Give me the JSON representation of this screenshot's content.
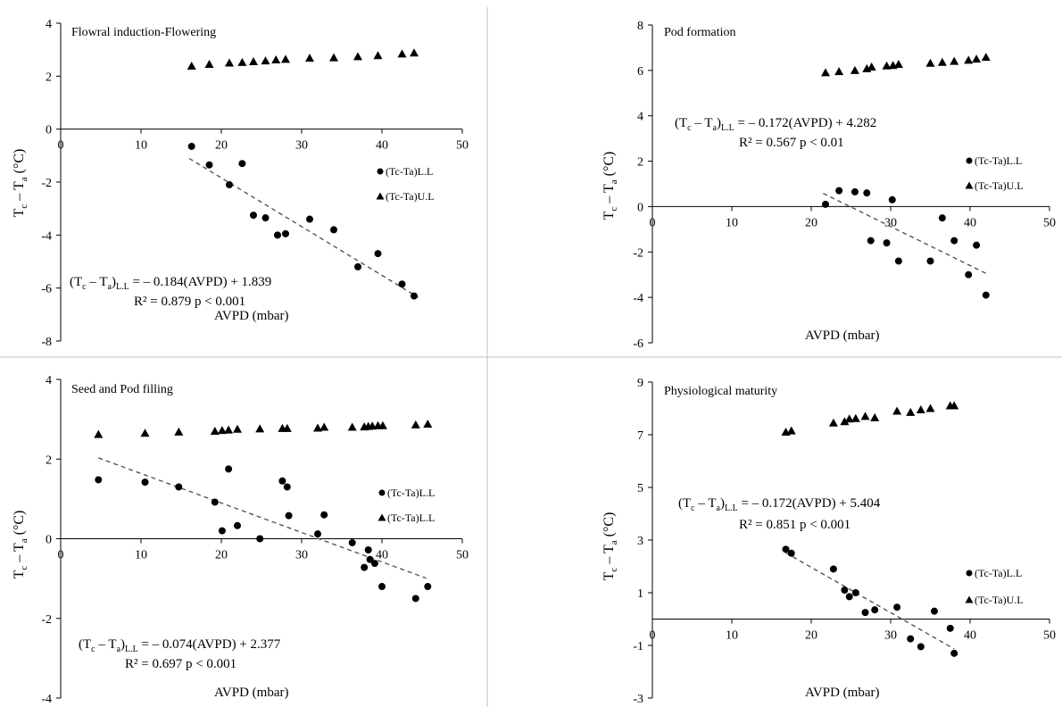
{
  "figure": {
    "divider_color": "#bfbfbf"
  },
  "chart_data": [
    {
      "type": "scatter",
      "title": "Flowral induction-Flowering",
      "xlabel": "AVPD  (mbar)",
      "ylabel": "T",
      "ylabel_sub": "c",
      "ylabel_mid": " – T",
      "ylabel_sub2": "a",
      "ylabel_unit": " (°C)",
      "xlim": [
        0,
        50
      ],
      "ylim": [
        -8,
        4
      ],
      "xticks": [
        0,
        10,
        20,
        30,
        40,
        50
      ],
      "yticks": [
        -8,
        -6,
        -4,
        -2,
        0,
        2,
        4
      ],
      "equation": {
        "lhs": "(T",
        "sub1": "c",
        "mid": " – T",
        "sub2": "a",
        "close": ")",
        "sub3": "L.L",
        "rhs": " = – 0.184(AVPD) + 1.839",
        "r2": "R² = 0.879   p < 0.001"
      },
      "series": [
        {
          "name": "(Tc-Ta)L.L",
          "marker": "circle",
          "x": [
            16.3,
            18.5,
            21.0,
            22.6,
            24.0,
            25.5,
            27.0,
            28.0,
            31.0,
            34.0,
            37.0,
            39.5,
            42.5,
            44.0
          ],
          "y": [
            -0.65,
            -1.35,
            -2.1,
            -1.3,
            -3.25,
            -3.35,
            -4.0,
            -3.95,
            -3.4,
            -3.8,
            -5.2,
            -4.7,
            -5.85,
            -6.3
          ]
        },
        {
          "name": "(Tc-Ta)U.L",
          "marker": "triangle",
          "x": [
            16.3,
            18.5,
            21.0,
            22.6,
            24.0,
            25.5,
            26.8,
            28.0,
            31.0,
            34.0,
            37.0,
            39.5,
            42.5,
            44.0
          ],
          "y": [
            2.38,
            2.45,
            2.5,
            2.52,
            2.55,
            2.58,
            2.62,
            2.64,
            2.68,
            2.7,
            2.74,
            2.78,
            2.84,
            2.88
          ]
        }
      ],
      "trendline": {
        "slope": -0.184,
        "intercept": 1.839,
        "x_range": [
          16,
          44.5
        ]
      }
    },
    {
      "type": "scatter",
      "title": "Pod formation",
      "xlabel": "AVPD  (mbar)",
      "ylabel": "T",
      "ylabel_sub": "c",
      "ylabel_mid": " – T",
      "ylabel_sub2": "a",
      "ylabel_unit": " (°C)",
      "xlim": [
        0,
        50
      ],
      "ylim": [
        -6,
        8
      ],
      "xticks": [
        0,
        10,
        20,
        30,
        40,
        50
      ],
      "yticks": [
        -6,
        -4,
        -2,
        0,
        2,
        4,
        6,
        8
      ],
      "equation": {
        "lhs": "(T",
        "sub1": "c",
        "mid": " – T",
        "sub2": "a",
        "close": ")",
        "sub3": "L.L",
        "rhs": " = – 0.172(AVPD) + 4.282",
        "r2": "R² = 0.567   p < 0.01"
      },
      "series": [
        {
          "name": "(Tc-Ta)L.L",
          "marker": "circle",
          "x": [
            21.8,
            23.5,
            25.5,
            27.0,
            27.5,
            29.5,
            30.2,
            31.0,
            35.0,
            36.5,
            38.0,
            39.8,
            40.8,
            42.0
          ],
          "y": [
            0.1,
            0.7,
            0.65,
            0.6,
            -1.5,
            -1.6,
            0.3,
            -2.4,
            -2.4,
            -0.5,
            -1.5,
            -3.0,
            -1.7,
            -3.9
          ]
        },
        {
          "name": "(Tc-Ta)U.L",
          "marker": "triangle",
          "x": [
            21.8,
            23.5,
            25.5,
            27.0,
            27.6,
            29.5,
            30.3,
            31.0,
            35.0,
            36.5,
            38.0,
            39.8,
            40.8,
            42.0
          ],
          "y": [
            5.9,
            5.95,
            6.0,
            6.08,
            6.15,
            6.2,
            6.22,
            6.27,
            6.32,
            6.36,
            6.4,
            6.45,
            6.5,
            6.58
          ]
        }
      ],
      "trendline": {
        "slope": -0.172,
        "intercept": 4.282,
        "x_range": [
          21.5,
          42
        ]
      }
    },
    {
      "type": "scatter",
      "title": "Seed and Pod filling",
      "xlabel": "AVPD  (mbar)",
      "ylabel": "T",
      "ylabel_sub": "c",
      "ylabel_mid": " – T",
      "ylabel_sub2": "a",
      "ylabel_unit": " (°C)",
      "xlim": [
        0,
        50
      ],
      "ylim": [
        -4,
        4
      ],
      "xticks": [
        0,
        10,
        20,
        30,
        40,
        50
      ],
      "yticks": [
        -4,
        -2,
        0,
        2,
        4
      ],
      "equation": {
        "lhs": "(T",
        "sub1": "c",
        "mid": " – T",
        "sub2": "a",
        "close": ")",
        "sub3": "L.L",
        "rhs": " = – 0.074(AVPD) + 2.377",
        "r2": "R² = 0.697   p < 0.001"
      },
      "series": [
        {
          "name": "(Tc-Ta)L.L",
          "marker": "circle",
          "x": [
            4.7,
            10.5,
            14.7,
            19.2,
            20.1,
            20.9,
            22.0,
            24.8,
            27.6,
            28.2,
            28.4,
            32.0,
            32.8,
            36.3,
            37.8,
            38.3,
            38.5,
            39.1,
            40.0,
            44.2,
            45.7
          ],
          "y": [
            1.48,
            1.42,
            1.3,
            0.92,
            0.2,
            1.75,
            0.33,
            0.0,
            1.45,
            1.3,
            0.58,
            0.12,
            0.6,
            -0.1,
            -0.72,
            -0.28,
            -0.52,
            -0.62,
            -1.2,
            -1.5,
            -1.2
          ]
        },
        {
          "name": "(Tc-Ta)L.L",
          "marker": "triangle",
          "x": [
            4.7,
            10.5,
            14.7,
            19.2,
            20.1,
            20.9,
            22.0,
            24.8,
            27.6,
            28.2,
            32.0,
            32.8,
            36.3,
            37.8,
            38.3,
            38.8,
            39.5,
            40.1,
            44.2,
            45.7
          ],
          "y": [
            2.62,
            2.65,
            2.68,
            2.7,
            2.72,
            2.73,
            2.75,
            2.76,
            2.77,
            2.77,
            2.78,
            2.8,
            2.8,
            2.81,
            2.82,
            2.83,
            2.84,
            2.84,
            2.86,
            2.88
          ]
        }
      ],
      "trendline": {
        "slope": -0.074,
        "intercept": 2.377,
        "x_range": [
          4.7,
          45.5
        ]
      }
    },
    {
      "type": "scatter",
      "title": "Physiological maturity",
      "xlabel": "AVPD  (mbar)",
      "ylabel": "T",
      "ylabel_sub": "c",
      "ylabel_mid": " – T",
      "ylabel_sub2": "a",
      "ylabel_unit": " (°C)",
      "xlim": [
        0,
        50
      ],
      "ylim": [
        -3,
        9
      ],
      "xticks": [
        0,
        10,
        20,
        30,
        40,
        50
      ],
      "yticks": [
        -3,
        -1,
        1,
        3,
        5,
        7,
        9
      ],
      "equation": {
        "lhs": "(T",
        "sub1": "c",
        "mid": " – T",
        "sub2": "a",
        "close": ")",
        "sub3": "L.L",
        "rhs": " = – 0.172(AVPD) + 5.404",
        "r2": "R² = 0.851   p < 0.001"
      },
      "series": [
        {
          "name": "(Tc-Ta)L.L",
          "marker": "circle",
          "x": [
            16.8,
            17.5,
            22.8,
            24.2,
            24.8,
            25.6,
            26.8,
            28.0,
            30.8,
            32.5,
            33.8,
            35.5,
            37.5,
            38.0
          ],
          "y": [
            2.65,
            2.5,
            1.9,
            1.1,
            0.85,
            1.0,
            0.25,
            0.35,
            0.45,
            -0.75,
            -1.05,
            0.3,
            -0.35,
            -1.3
          ]
        },
        {
          "name": "(Tc-Ta)U.L",
          "marker": "triangle",
          "x": [
            16.8,
            17.5,
            22.8,
            24.2,
            24.8,
            25.6,
            26.8,
            28.0,
            30.8,
            32.5,
            33.8,
            35.0,
            37.5,
            38.0
          ],
          "y": [
            7.1,
            7.15,
            7.45,
            7.5,
            7.6,
            7.62,
            7.7,
            7.65,
            7.9,
            7.85,
            7.95,
            8.0,
            8.1,
            8.1
          ]
        }
      ],
      "trendline": {
        "slope": -0.172,
        "intercept": 5.404,
        "x_range": [
          16.8,
          38
        ]
      }
    }
  ]
}
